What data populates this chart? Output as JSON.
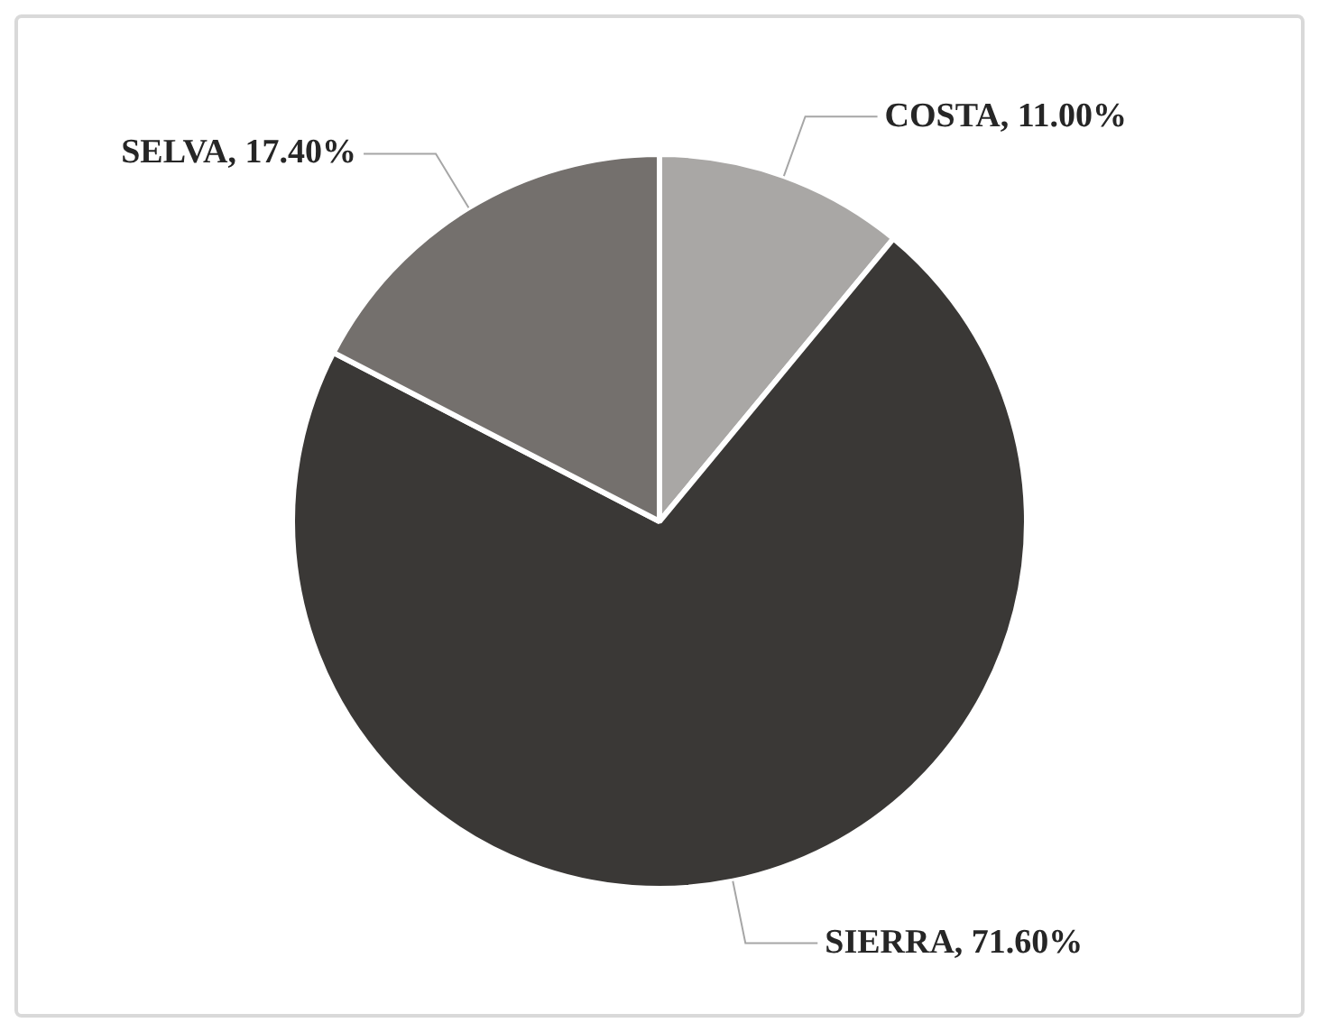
{
  "chart_data": {
    "type": "pie",
    "categories": [
      "COSTA",
      "SIERRA",
      "SELVA"
    ],
    "values": [
      11.0,
      71.6,
      17.4
    ],
    "colors": [
      "#a9a7a5",
      "#3a3836",
      "#74706d"
    ],
    "value_labels": [
      "11.00%",
      "71.60%",
      "17.40%"
    ],
    "legend": false
  }
}
